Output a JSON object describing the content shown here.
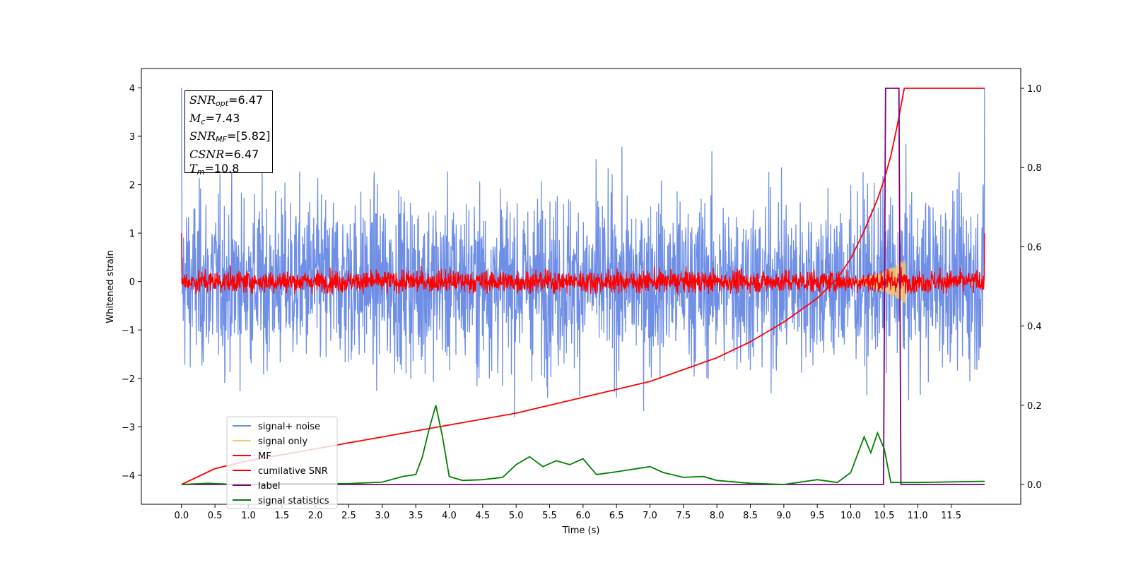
{
  "chart_data": {
    "type": "line",
    "xlabel": "Time (s)",
    "ylabel": "Whitened strain",
    "xlim": [
      -0.6,
      12.54
    ],
    "ylim": [
      -4.6,
      4.4
    ],
    "y2lim": [
      -0.05,
      1.05
    ],
    "xticks": [
      "0.0",
      "0.5",
      "1.0",
      "1.5",
      "2.0",
      "2.5",
      "3.0",
      "3.5",
      "4.0",
      "4.5",
      "5.0",
      "5.5",
      "6.0",
      "6.5",
      "7.0",
      "7.5",
      "8.0",
      "8.5",
      "9.0",
      "9.5",
      "10.0",
      "10.5",
      "11.0",
      "11.5"
    ],
    "yticks": [
      "4",
      "3",
      "2",
      "1",
      "0",
      "−1",
      "−2",
      "−3",
      "−4"
    ],
    "y2ticks": [
      "1.0",
      "0.8",
      "0.6",
      "0.4",
      "0.2",
      "0.0"
    ],
    "series": [
      {
        "name": "signal+ noise",
        "color": "#6f8fe6",
        "axis": "left",
        "kind": "noise",
        "amplitude": 1.0,
        "range": [
          -4.1,
          4.0
        ]
      },
      {
        "name": "signal only",
        "color": "#f5c86a",
        "axis": "left",
        "kind": "chirp",
        "peak_time": 10.8,
        "peak_amplitude": 0.45
      },
      {
        "name": "MF",
        "color": "#ff0000",
        "axis": "left",
        "kind": "noise",
        "amplitude": 0.13,
        "range": [
          -0.25,
          1.0
        ]
      },
      {
        "name": "cumilative SNR",
        "color": "#ff0000",
        "axis": "right",
        "x": [
          0.0,
          0.5,
          1.0,
          2.0,
          3.0,
          4.0,
          5.0,
          6.0,
          7.0,
          8.0,
          8.5,
          9.0,
          9.5,
          9.8,
          10.0,
          10.2,
          10.4,
          10.5,
          10.6,
          10.7,
          10.8,
          12.0
        ],
        "y": [
          0.0,
          0.04,
          0.06,
          0.09,
          0.12,
          0.15,
          0.18,
          0.22,
          0.26,
          0.32,
          0.36,
          0.41,
          0.47,
          0.52,
          0.57,
          0.64,
          0.72,
          0.77,
          0.83,
          0.91,
          1.0,
          1.0
        ]
      },
      {
        "name": "label",
        "color": "#7b007b",
        "axis": "right",
        "x": [
          0.0,
          10.49,
          10.52,
          10.72,
          10.75,
          12.0
        ],
        "y": [
          0.0,
          0.0,
          1.0,
          1.0,
          0.0,
          0.0
        ]
      },
      {
        "name": "signal statistics",
        "color": "#008000",
        "axis": "right",
        "x": [
          0.0,
          0.4,
          0.8,
          1.5,
          2.5,
          3.0,
          3.3,
          3.5,
          3.6,
          3.7,
          3.8,
          3.9,
          4.0,
          4.2,
          4.5,
          4.8,
          5.0,
          5.2,
          5.4,
          5.6,
          5.8,
          6.0,
          6.2,
          6.5,
          7.0,
          7.2,
          7.5,
          7.8,
          8.0,
          8.5,
          9.0,
          9.5,
          9.8,
          10.0,
          10.2,
          10.3,
          10.4,
          10.5,
          10.6,
          11.0,
          12.0
        ],
        "y": [
          0.0,
          0.003,
          0.0,
          0.002,
          0.002,
          0.006,
          0.02,
          0.025,
          0.07,
          0.14,
          0.2,
          0.12,
          0.02,
          0.01,
          0.012,
          0.018,
          0.05,
          0.07,
          0.045,
          0.06,
          0.05,
          0.065,
          0.025,
          0.032,
          0.045,
          0.03,
          0.018,
          0.02,
          0.01,
          0.003,
          0.0,
          0.012,
          0.005,
          0.03,
          0.12,
          0.08,
          0.13,
          0.09,
          0.005,
          0.005,
          0.008
        ]
      }
    ],
    "legend": {
      "position": "lower-left",
      "entries": [
        {
          "label": "signal+ noise",
          "color": "#6f8fe6"
        },
        {
          "label": "signal only",
          "color": "#f5c86a"
        },
        {
          "label": "MF",
          "color": "#ff0000"
        },
        {
          "label": "cumilative SNR",
          "color": "#ff0000"
        },
        {
          "label": "label",
          "color": "#7b007b"
        },
        {
          "label": "signal statistics",
          "color": "#008000"
        }
      ]
    },
    "annotations": {
      "snr_opt": {
        "symbol": "SNR",
        "sub": "opt",
        "value": "=6.47"
      },
      "mc": {
        "symbol": "M",
        "sub": "c",
        "value": "=7.43"
      },
      "snr_mf": {
        "symbol": "SNR",
        "sub": "MF",
        "value": "=[5.82]"
      },
      "csnr": {
        "symbol": "CSNR",
        "sub": "",
        "value": "=6.47"
      },
      "tm": {
        "symbol": "T",
        "sub": "m",
        "value": "=10.8"
      }
    }
  }
}
